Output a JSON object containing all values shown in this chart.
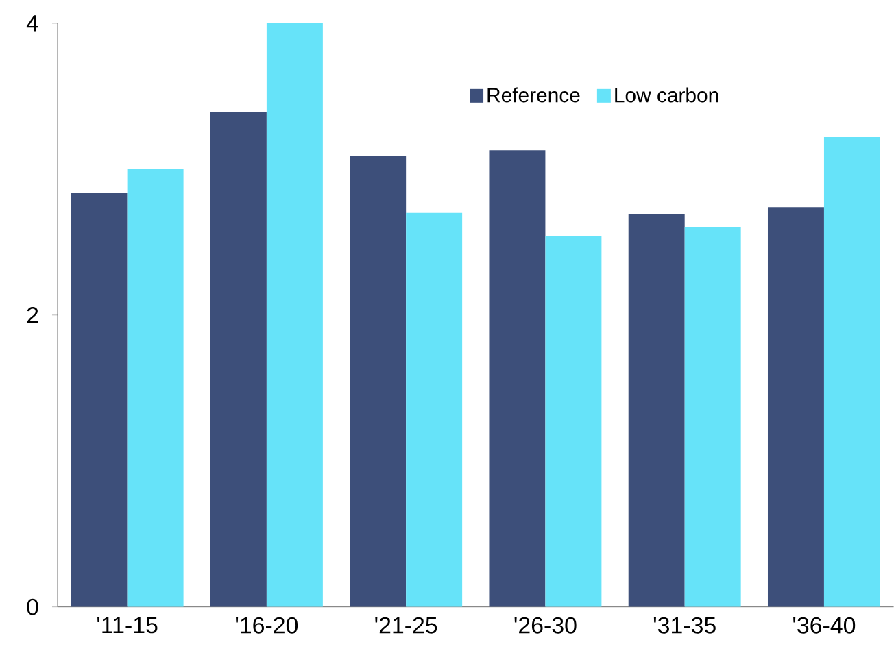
{
  "chart_data": {
    "type": "bar",
    "categories": [
      "'11-15",
      "'16-20",
      "'21-25",
      "'26-30",
      "'31-35",
      "'36-40"
    ],
    "series": [
      {
        "name": "Reference",
        "color": "#3d4f7a",
        "values": [
          2.84,
          3.39,
          3.09,
          3.13,
          2.69,
          2.74
        ]
      },
      {
        "name": "Low carbon",
        "color": "#66e3f9",
        "values": [
          3.0,
          4.0,
          2.7,
          2.54,
          2.6,
          3.22
        ]
      }
    ],
    "ylim": [
      0,
      4
    ],
    "yticks": [
      0,
      2,
      4
    ],
    "grid": false,
    "legend": "top right"
  }
}
